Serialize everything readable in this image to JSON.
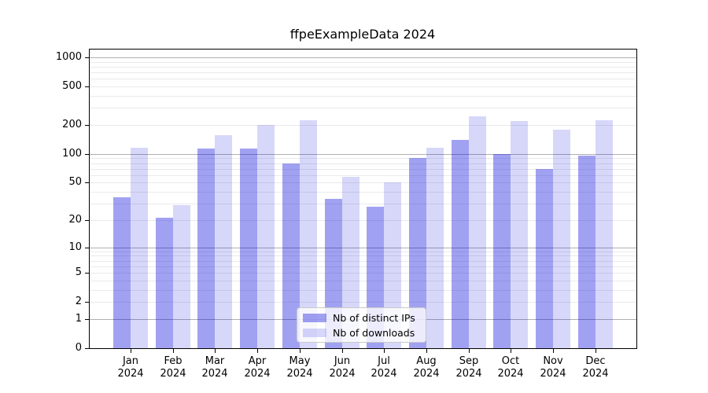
{
  "chart_data": {
    "type": "bar",
    "title": "ffpeExampleData 2024",
    "categories": [
      "Jan",
      "Feb",
      "Mar",
      "Apr",
      "May",
      "Jun",
      "Jul",
      "Aug",
      "Sep",
      "Oct",
      "Nov",
      "Dec"
    ],
    "x_tick_year": "2024",
    "series": [
      {
        "name": "Nb of distinct IPs",
        "color": "rgba(0,0,220,0.37)",
        "values": [
          35,
          21,
          113,
          113,
          80,
          34,
          28,
          90,
          140,
          100,
          70,
          96
        ]
      },
      {
        "name": "Nb of downloads",
        "color": "rgba(0,0,220,0.155)",
        "values": [
          116,
          29,
          157,
          199,
          226,
          58,
          50,
          116,
          244,
          220,
          178,
          225
        ]
      }
    ],
    "xlabel": "",
    "ylabel": "",
    "yscale": "log1p",
    "yticks": [
      0,
      1,
      2,
      5,
      10,
      20,
      50,
      100,
      200,
      500,
      1000
    ],
    "ylim": [
      0,
      1230
    ],
    "grid": "major-and-minor",
    "legend_position": "lower center",
    "colors": {
      "major_grid": "#b0b0b0",
      "minor_grid": "#eaeaea",
      "spine": "#000000",
      "background": "#ffffff"
    }
  }
}
